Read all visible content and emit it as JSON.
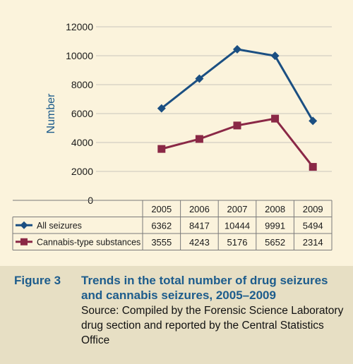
{
  "figure": {
    "label": "Figure 3",
    "title": "Trends in the total number of drug seizures and cannabis seizures, 2005–2009",
    "source": "Source: Compiled by the Forensic Science Laboratory drug section and reported by the Central Statistics Office"
  },
  "chart_data": {
    "type": "line",
    "ylabel": "Number",
    "xlabel": "",
    "ylim": [
      0,
      12000
    ],
    "yticks": [
      "0",
      "2000",
      "4000",
      "6000",
      "8000",
      "10000",
      "12000"
    ],
    "categories": [
      "2005",
      "2006",
      "2007",
      "2008",
      "2009"
    ],
    "grid": true,
    "legend": "table below chart",
    "series": [
      {
        "name": "All seizures",
        "values": [
          6362,
          8417,
          10444,
          9991,
          5494
        ],
        "color": "#1b4f82",
        "marker": "diamond"
      },
      {
        "name": "Cannabis-type substances",
        "values": [
          3555,
          4243,
          5176,
          5652,
          2314
        ],
        "color": "#8a2846",
        "marker": "square"
      }
    ]
  }
}
